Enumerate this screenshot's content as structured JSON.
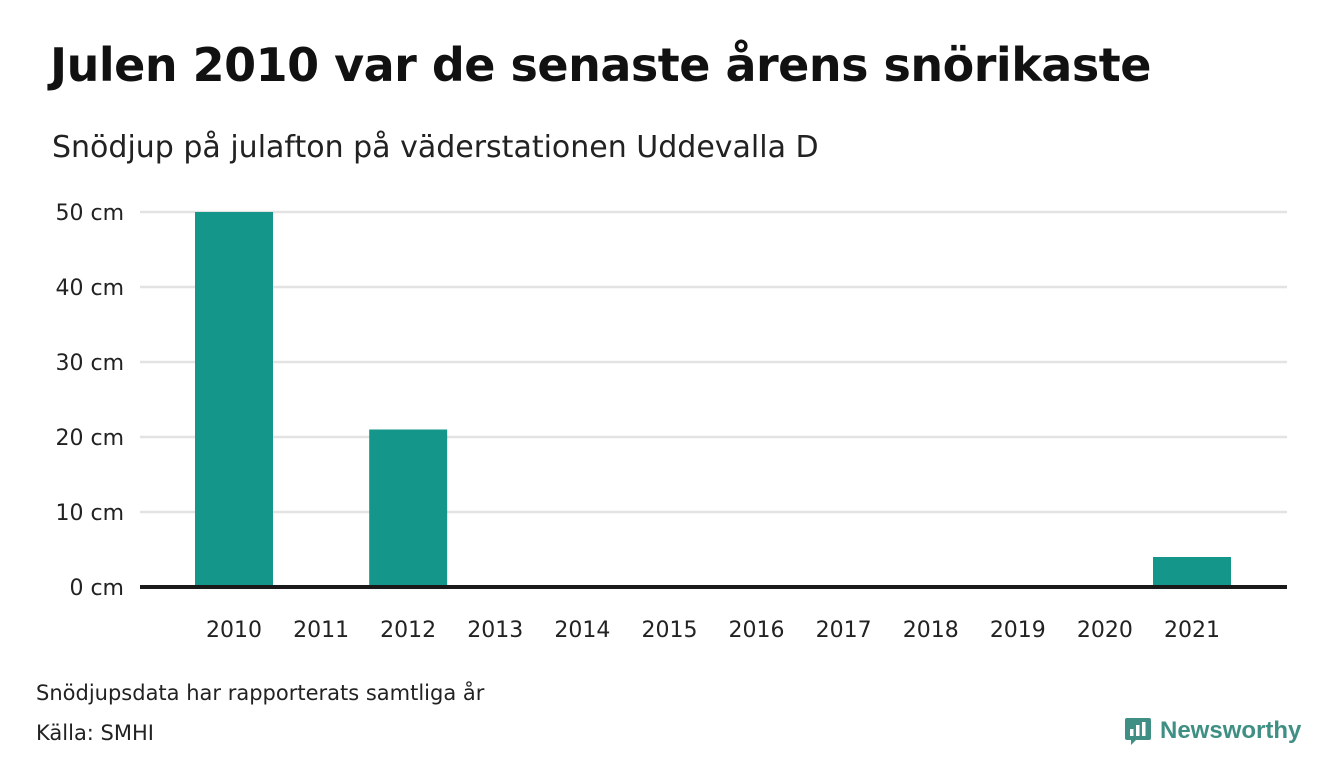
{
  "header": {
    "title": "Julen 2010 var de senaste årens snörikaste",
    "subtitle": "Snödjup på julafton på väderstationen Uddevalla D"
  },
  "chart_data": {
    "type": "bar",
    "title": "Julen 2010 var de senaste årens snörikaste",
    "subtitle": "Snödjup på julafton på väderstationen Uddevalla D",
    "categories": [
      "2010",
      "2011",
      "2012",
      "2013",
      "2014",
      "2015",
      "2016",
      "2017",
      "2018",
      "2019",
      "2020",
      "2021"
    ],
    "values": [
      50,
      0,
      21,
      0,
      0,
      0,
      0,
      0,
      0,
      0,
      0,
      4
    ],
    "ylim": [
      0,
      50
    ],
    "y_ticks": [
      0,
      10,
      20,
      30,
      40,
      50
    ],
    "y_tick_labels": [
      "0 cm",
      "10 cm",
      "20 cm",
      "30 cm",
      "40 cm",
      "50 cm"
    ],
    "xlabel": "",
    "ylabel": "",
    "grid": true,
    "bar_color": "#14968a"
  },
  "footer": {
    "note": "Snödjupsdata har rapporterats samtliga år",
    "source": "Källa: SMHI",
    "brand": "Newsworthy",
    "brand_color": "#3f8f84",
    "brand_icon": "newsworthy-logo-icon"
  }
}
